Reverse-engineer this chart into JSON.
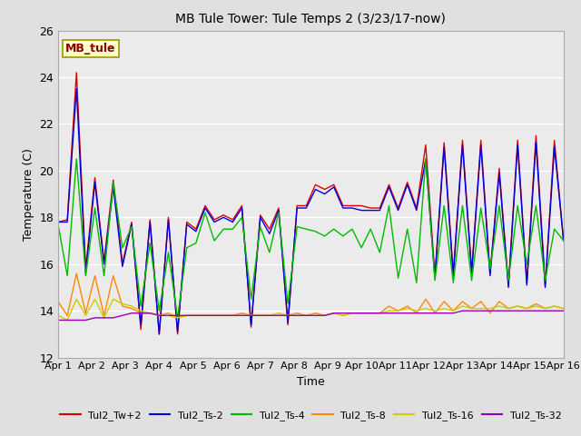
{
  "title": "MB Tule Tower: Tule Temps 2 (3/23/17-now)",
  "xlabel": "Time",
  "ylabel": "Temperature (C)",
  "ylim": [
    12,
    26
  ],
  "yticks": [
    12,
    14,
    16,
    18,
    20,
    22,
    24,
    26
  ],
  "xlim": [
    0,
    15
  ],
  "xtick_labels": [
    "Apr 1",
    "Apr 2",
    "Apr 3",
    "Apr 4",
    "Apr 5",
    "Apr 6",
    "Apr 7",
    "Apr 8",
    "Apr 9",
    "Apr 10",
    "Apr 11",
    "Apr 12",
    "Apr 13",
    "Apr 14",
    "Apr 15",
    "Apr 16"
  ],
  "bg_color": "#e0e0e0",
  "plot_bg_color": "#ebebeb",
  "grid_color": "#ffffff",
  "legend_label": "MB_tule",
  "series_colors": {
    "Tul2_Tw+2": "#dd0000",
    "Tul2_Ts-2": "#0000dd",
    "Tul2_Ts-4": "#00bb00",
    "Tul2_Ts-8": "#ff8800",
    "Tul2_Ts-16": "#cccc00",
    "Tul2_Ts-32": "#9900bb"
  },
  "series": {
    "Tul2_Tw+2": [
      17.8,
      17.9,
      24.2,
      15.8,
      19.7,
      16.1,
      19.6,
      16.0,
      17.8,
      13.2,
      17.9,
      13.0,
      18.0,
      13.0,
      17.8,
      17.5,
      18.5,
      17.9,
      18.1,
      17.9,
      18.5,
      13.3,
      18.1,
      17.5,
      18.4,
      13.4,
      18.5,
      18.5,
      19.4,
      19.2,
      19.4,
      18.5,
      18.5,
      18.5,
      18.4,
      18.4,
      19.4,
      18.4,
      19.5,
      18.4,
      21.1,
      15.5,
      21.2,
      15.6,
      21.3,
      15.7,
      21.3,
      15.6,
      20.1,
      15.1,
      21.3,
      15.2,
      21.5,
      15.1,
      21.3,
      17.0
    ],
    "Tul2_Ts-2": [
      17.8,
      17.8,
      23.5,
      15.6,
      19.5,
      16.0,
      19.3,
      15.9,
      17.7,
      13.4,
      17.8,
      13.0,
      17.9,
      13.1,
      17.7,
      17.4,
      18.4,
      17.8,
      18.0,
      17.8,
      18.4,
      13.4,
      18.0,
      17.3,
      18.3,
      13.5,
      18.4,
      18.4,
      19.2,
      19.0,
      19.3,
      18.4,
      18.4,
      18.3,
      18.3,
      18.3,
      19.3,
      18.3,
      19.4,
      18.3,
      20.5,
      15.4,
      21.0,
      15.5,
      21.1,
      15.6,
      21.1,
      15.5,
      19.9,
      15.0,
      21.1,
      15.1,
      21.2,
      15.0,
      21.0,
      17.0
    ],
    "Tul2_Ts-4": [
      17.7,
      15.5,
      20.5,
      15.5,
      18.4,
      15.5,
      19.5,
      16.7,
      17.6,
      14.2,
      16.9,
      14.0,
      16.5,
      13.7,
      16.7,
      16.9,
      18.2,
      17.0,
      17.5,
      17.5,
      18.0,
      14.5,
      17.6,
      16.5,
      18.2,
      14.3,
      17.6,
      17.5,
      17.4,
      17.2,
      17.5,
      17.2,
      17.5,
      16.7,
      17.5,
      16.5,
      18.5,
      15.4,
      17.5,
      15.2,
      20.5,
      15.3,
      18.5,
      15.2,
      18.5,
      15.3,
      18.4,
      15.8,
      18.5,
      15.3,
      18.5,
      16.0,
      18.5,
      15.3,
      17.5,
      17.0
    ],
    "Tul2_Ts-8": [
      14.4,
      13.8,
      15.6,
      13.9,
      15.5,
      13.8,
      15.5,
      14.2,
      14.1,
      13.9,
      13.9,
      13.8,
      13.9,
      13.7,
      13.8,
      13.8,
      13.8,
      13.8,
      13.8,
      13.8,
      13.9,
      13.8,
      13.8,
      13.8,
      13.8,
      13.8,
      13.9,
      13.8,
      13.9,
      13.8,
      13.9,
      13.8,
      13.9,
      13.9,
      13.9,
      13.9,
      14.2,
      14.0,
      14.2,
      13.9,
      14.5,
      13.9,
      14.4,
      14.0,
      14.4,
      14.1,
      14.4,
      13.9,
      14.4,
      14.1,
      14.2,
      14.1,
      14.3,
      14.1,
      14.2,
      14.1
    ],
    "Tul2_Ts-16": [
      13.8,
      13.6,
      14.5,
      13.8,
      14.5,
      13.7,
      14.5,
      14.3,
      14.2,
      14.0,
      13.9,
      13.8,
      13.8,
      13.7,
      13.8,
      13.8,
      13.8,
      13.8,
      13.8,
      13.8,
      13.8,
      13.8,
      13.8,
      13.8,
      13.9,
      13.8,
      13.8,
      13.8,
      13.8,
      13.8,
      13.9,
      13.8,
      13.9,
      13.9,
      13.9,
      13.9,
      14.0,
      14.0,
      14.1,
      14.0,
      14.1,
      14.0,
      14.1,
      14.0,
      14.2,
      14.1,
      14.1,
      14.1,
      14.2,
      14.1,
      14.2,
      14.1,
      14.2,
      14.1,
      14.2,
      14.1
    ],
    "Tul2_Ts-32": [
      13.6,
      13.6,
      13.6,
      13.6,
      13.7,
      13.7,
      13.7,
      13.8,
      13.9,
      13.9,
      13.9,
      13.8,
      13.8,
      13.8,
      13.8,
      13.8,
      13.8,
      13.8,
      13.8,
      13.8,
      13.8,
      13.8,
      13.8,
      13.8,
      13.8,
      13.8,
      13.8,
      13.8,
      13.8,
      13.8,
      13.9,
      13.9,
      13.9,
      13.9,
      13.9,
      13.9,
      13.9,
      13.9,
      13.9,
      13.9,
      13.9,
      13.9,
      13.9,
      13.9,
      14.0,
      14.0,
      14.0,
      14.0,
      14.0,
      14.0,
      14.0,
      14.0,
      14.0,
      14.0,
      14.0,
      14.0
    ]
  }
}
